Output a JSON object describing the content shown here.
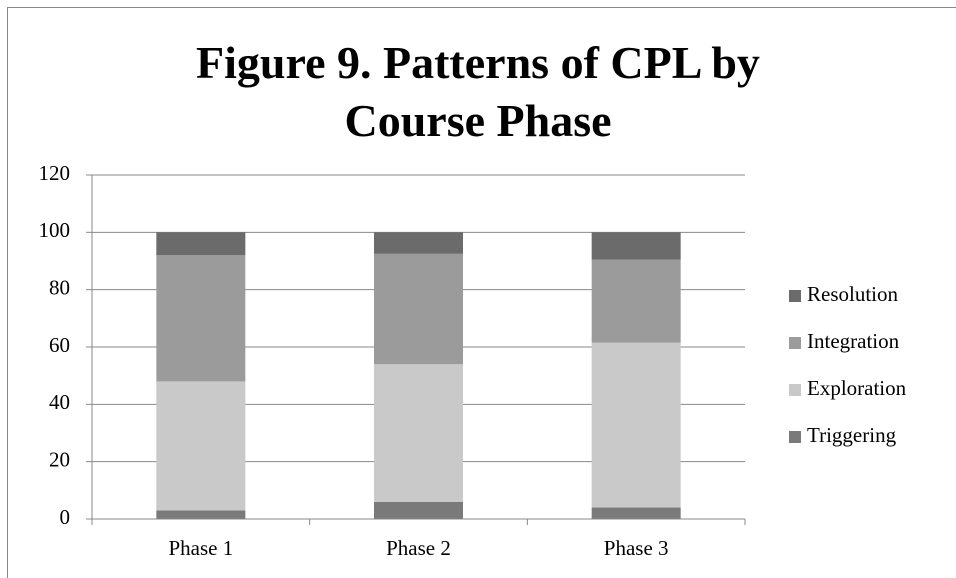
{
  "chart_data": {
    "type": "stacked_bar",
    "title": "Figure 9. Patterns of CPL by Course Phase",
    "categories": [
      "Phase 1",
      "Phase 2",
      "Phase 3"
    ],
    "series": [
      {
        "name": "Triggering",
        "color": "#7a7a7a",
        "values": [
          3,
          6,
          4
        ]
      },
      {
        "name": "Exploration",
        "color": "#c9c9c9",
        "values": [
          45,
          48,
          57.5
        ]
      },
      {
        "name": "Integration",
        "color": "#9b9b9b",
        "values": [
          44,
          38.5,
          29
        ]
      },
      {
        "name": "Resolution",
        "color": "#6b6b6b",
        "values": [
          8,
          7.5,
          9.5
        ]
      }
    ],
    "ylim": [
      0,
      120
    ],
    "yticks": [
      0,
      20,
      40,
      60,
      80,
      100,
      120
    ],
    "grid": true,
    "legend": "right"
  }
}
